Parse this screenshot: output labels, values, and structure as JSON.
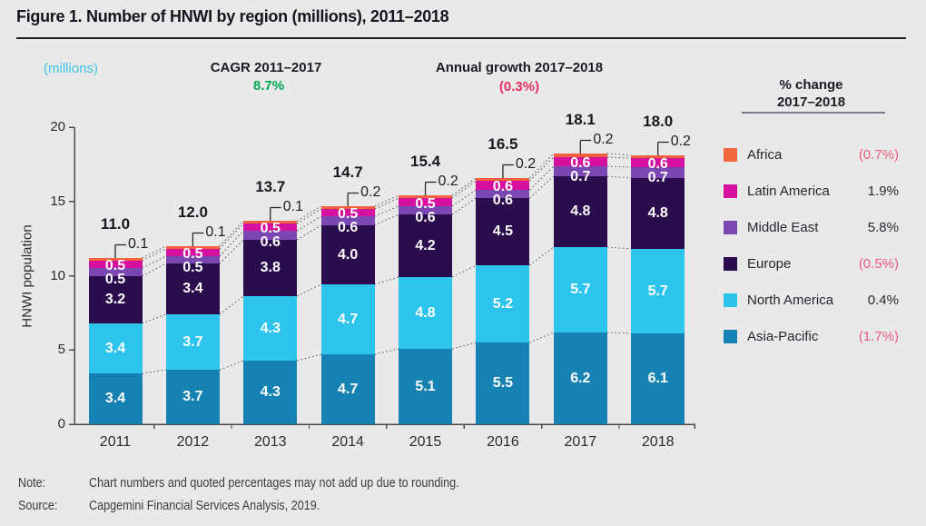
{
  "title": "Figure 1. Number of HNWI by region (millions), 2011–2018",
  "units_label": "(millions)",
  "cagr": {
    "label": "CAGR 2011–2017",
    "value": "8.7%"
  },
  "annual_growth": {
    "label": "Annual growth 2017–2018",
    "value": "(0.3%)"
  },
  "legend": {
    "header_line1": "% change",
    "header_line2": "2017–2018",
    "items": [
      {
        "label": "Africa",
        "value": "(0.7%)",
        "negative": true,
        "color": "#f2683f"
      },
      {
        "label": "Latin America",
        "value": "1.9%",
        "negative": false,
        "color": "#d5109e"
      },
      {
        "label": "Middle East",
        "value": "5.8%",
        "negative": false,
        "color": "#7b48b3"
      },
      {
        "label": "Europe",
        "value": "(0.5%)",
        "negative": true,
        "color": "#2b0c4d"
      },
      {
        "label": "North America",
        "value": "0.4%",
        "negative": false,
        "color": "#2cc3ec"
      },
      {
        "label": "Asia-Pacific",
        "value": "(1.7%)",
        "negative": true,
        "color": "#1682b4"
      }
    ]
  },
  "note": {
    "label": "Note:",
    "text": "Chart numbers and quoted percentages may not add up due to rounding."
  },
  "source": {
    "label": "Source:",
    "text": "Capgemini Financial Services Analysis, 2019."
  },
  "colors": {
    "green": "#00a651",
    "red": "#e9335e",
    "pink": "#ee5c7e",
    "cyan": "#3fc2e4",
    "dark_text": "#26262e"
  },
  "chart_data": {
    "type": "stacked_bar",
    "title": "Number of HNWI by region (millions), 2011–2018",
    "ylabel": "HNWI population",
    "ylim": [
      0,
      20
    ],
    "yticks": [
      0,
      5,
      10,
      15,
      20
    ],
    "categories": [
      "2011",
      "2012",
      "2013",
      "2014",
      "2015",
      "2016",
      "2017",
      "2018"
    ],
    "totals": [
      11.0,
      12.0,
      13.7,
      14.7,
      15.4,
      16.5,
      18.1,
      18.0
    ],
    "series": [
      {
        "name": "Asia-Pacific",
        "color": "#1682b4",
        "values": [
          3.4,
          3.7,
          4.3,
          4.7,
          5.1,
          5.5,
          6.2,
          6.1
        ]
      },
      {
        "name": "North America",
        "color": "#2cc3ec",
        "values": [
          3.4,
          3.7,
          4.3,
          4.7,
          4.8,
          5.2,
          5.7,
          5.7
        ]
      },
      {
        "name": "Europe",
        "color": "#2b0c4d",
        "values": [
          3.2,
          3.4,
          3.8,
          4.0,
          4.2,
          4.5,
          4.8,
          4.8
        ]
      },
      {
        "name": "Middle East",
        "color": "#7b48b3",
        "values": [
          0.5,
          0.5,
          0.6,
          0.6,
          0.6,
          0.6,
          0.7,
          0.7
        ]
      },
      {
        "name": "Latin America",
        "color": "#d5109e",
        "values": [
          0.5,
          0.5,
          0.5,
          0.5,
          0.5,
          0.6,
          0.6,
          0.6
        ]
      },
      {
        "name": "Africa",
        "color": "#f2603d",
        "values": [
          0.1,
          0.1,
          0.1,
          0.2,
          0.2,
          0.2,
          0.2,
          0.2
        ],
        "labels_as_callout": true
      }
    ],
    "legend_position": "right",
    "grid": false
  }
}
